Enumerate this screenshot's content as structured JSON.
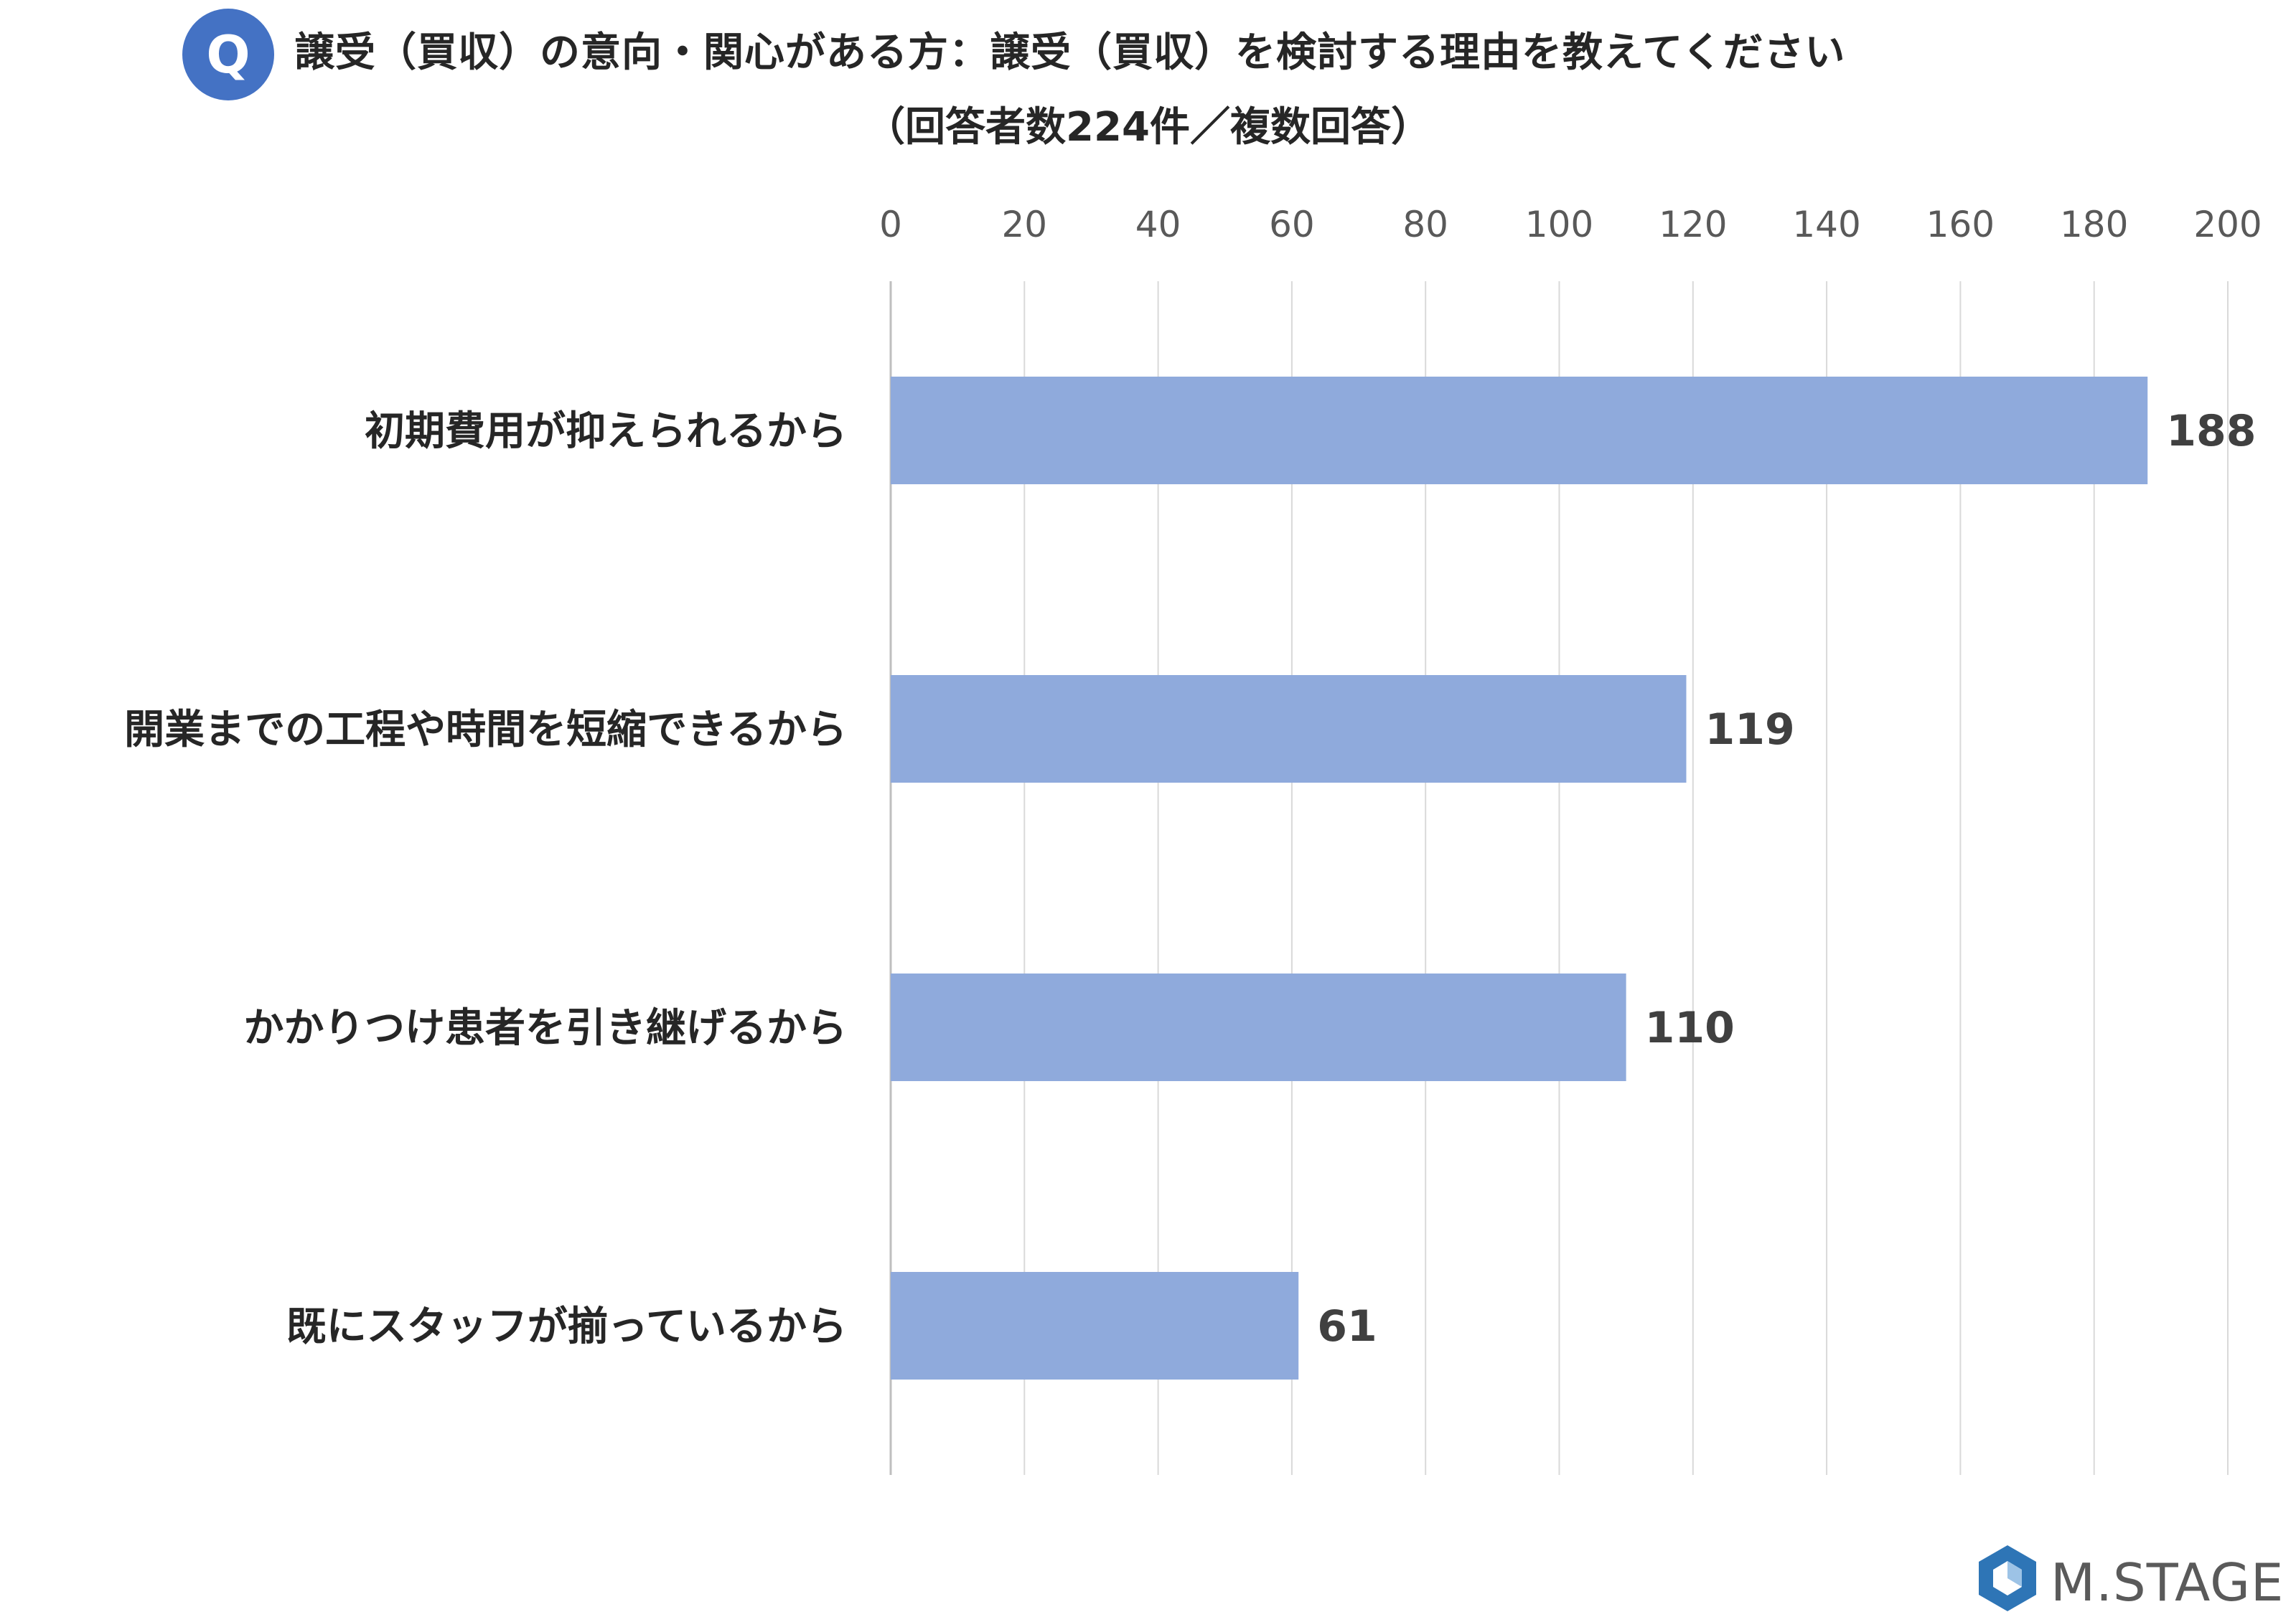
{
  "header": {
    "badge": "Q",
    "title_line1": "譲受（買収）の意向・関心がある方：譲受（買収）を検討する理由を教えてください",
    "title_line2": "（回答者数224件／複数回答）"
  },
  "chart_data": {
    "type": "bar",
    "orientation": "horizontal",
    "categories": [
      "初期費用が抑えられるから",
      "開業までの工程や時間を短縮できるから",
      "かかりつけ患者を引き継げるから",
      "既にスタッフが揃っているから"
    ],
    "values": [
      188,
      119,
      110,
      61
    ],
    "xlim": [
      0,
      200
    ],
    "x_ticks": [
      "0",
      "20",
      "40",
      "60",
      "80",
      "100",
      "120",
      "140",
      "160",
      "180",
      "200"
    ],
    "grid": true,
    "data_labels": true,
    "colors": {
      "bar": "#8faadc",
      "grid": "#d9d9d9",
      "axis": "#bfbfbf",
      "tick_text": "#595959",
      "label_text": "#262626",
      "value_text": "#404040"
    }
  },
  "logo": {
    "text": "M.STAGE",
    "colors": {
      "outer": "#2e75b6",
      "inner": "#9dc3e6"
    }
  }
}
